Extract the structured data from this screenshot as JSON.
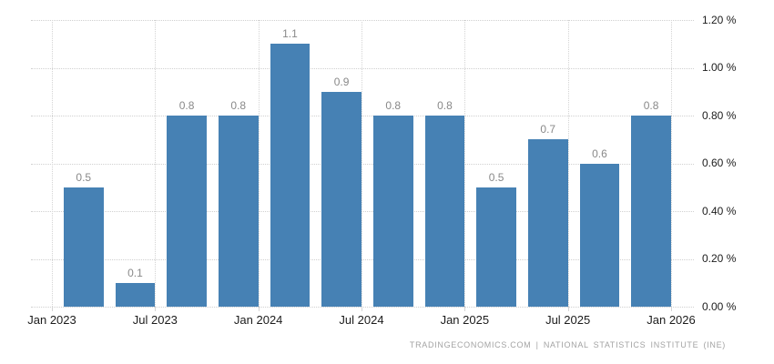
{
  "chart_data": {
    "type": "bar",
    "title": "",
    "xlabel": "",
    "ylabel": "",
    "period": "quarterly",
    "categories": [
      "2023 Q1",
      "2023 Q2",
      "2023 Q3",
      "2023 Q4",
      "2024 Q1",
      "2024 Q2",
      "2024 Q3",
      "2024 Q4",
      "2025 Q1",
      "2025 Q2",
      "2025 Q3",
      "2025 Q4"
    ],
    "values": [
      0.5,
      0.1,
      0.8,
      0.8,
      1.1,
      0.9,
      0.8,
      0.8,
      0.5,
      0.7,
      0.6,
      0.8
    ],
    "value_labels": [
      "0.5",
      "0.1",
      "0.8",
      "0.8",
      "1.1",
      "0.9",
      "0.8",
      "0.8",
      "0.5",
      "0.7",
      "0.6",
      "0.8"
    ],
    "x_tick_labels": [
      "Jan 2023",
      "Jul 2023",
      "Jan 2024",
      "Jul 2024",
      "Jan 2025",
      "Jul 2025",
      "Jan 2026"
    ],
    "y_tick_labels": [
      "0.00 %",
      "0.20 %",
      "0.40 %",
      "0.60 %",
      "0.80 %",
      "1.00 %",
      "1.20 %"
    ],
    "y_tick_values": [
      0.0,
      0.2,
      0.4,
      0.6,
      0.8,
      1.0,
      1.2
    ],
    "ylim": [
      0,
      1.2
    ],
    "grid": true,
    "grid_style": "dotted",
    "legend": "none",
    "colors": {
      "bar": "#4681b4",
      "value_label": "#898989",
      "axis_label": "#1c1c1c",
      "grid": "#d0d0d0",
      "background": "#ffffff",
      "credit": "#a3a3a3"
    }
  },
  "footer": {
    "credit": "TRADINGECONOMICS.COM | NATIONAL STATISTICS INSTITUTE (INE)"
  }
}
